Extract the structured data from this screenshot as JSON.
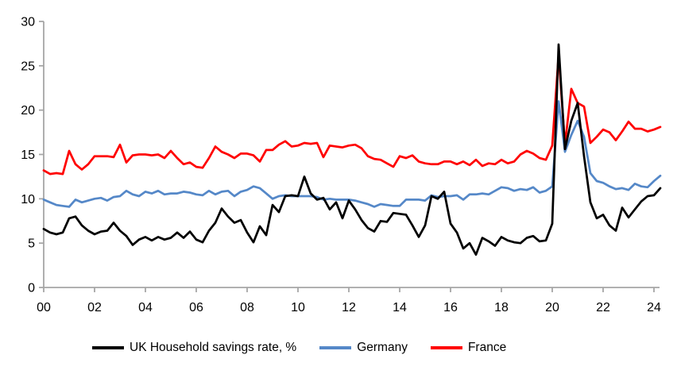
{
  "chart_data": {
    "type": "line",
    "title": "",
    "x_start": 2000.0,
    "x_step_years": 0.25,
    "x_axis": {
      "tick_labels": [
        "00",
        "02",
        "04",
        "06",
        "08",
        "10",
        "12",
        "14",
        "16",
        "18",
        "20",
        "22",
        "24"
      ],
      "tick_years": [
        2000,
        2002,
        2004,
        2006,
        2008,
        2010,
        2012,
        2014,
        2016,
        2018,
        2020,
        2022,
        2024
      ]
    },
    "y_axis": {
      "min": 0,
      "max": 30,
      "ticks": [
        0,
        5,
        10,
        15,
        20,
        25,
        30
      ]
    },
    "grid": false,
    "legend_position": "bottom",
    "axis_color": "#A6A6A6",
    "tick_label_color": "#000000",
    "series": [
      {
        "name": "UK Household savings rate, %",
        "color": "#000000",
        "values": [
          6.6,
          6.2,
          6.0,
          6.2,
          7.8,
          8.0,
          7.0,
          6.4,
          6.0,
          6.3,
          6.4,
          7.3,
          6.4,
          5.8,
          4.8,
          5.4,
          5.7,
          5.3,
          5.7,
          5.4,
          5.6,
          6.2,
          5.6,
          6.3,
          5.4,
          5.1,
          6.4,
          7.3,
          8.9,
          8.0,
          7.3,
          7.6,
          6.2,
          5.1,
          6.9,
          5.9,
          9.3,
          8.5,
          10.3,
          10.4,
          10.3,
          12.5,
          10.6,
          9.9,
          10.1,
          8.8,
          9.6,
          7.8,
          9.8,
          8.8,
          7.6,
          6.7,
          6.3,
          7.5,
          7.4,
          8.4,
          8.3,
          8.2,
          7.0,
          5.7,
          7.0,
          10.3,
          10.0,
          10.8,
          7.2,
          6.2,
          4.4,
          5.0,
          3.7,
          5.6,
          5.2,
          4.7,
          5.7,
          5.3,
          5.1,
          5.0,
          5.6,
          5.8,
          5.2,
          5.3,
          7.2,
          27.4,
          15.6,
          18.8,
          20.8,
          14.8,
          9.6,
          7.8,
          8.2,
          7.0,
          6.4,
          9.0,
          7.9,
          8.8,
          9.7,
          10.3,
          10.4,
          11.2
        ]
      },
      {
        "name": "Germany",
        "color": "#5588C8",
        "values": [
          9.9,
          9.6,
          9.3,
          9.2,
          9.1,
          9.9,
          9.6,
          9.8,
          10.0,
          10.1,
          9.8,
          10.2,
          10.3,
          10.9,
          10.5,
          10.3,
          10.8,
          10.6,
          10.9,
          10.5,
          10.6,
          10.6,
          10.8,
          10.7,
          10.5,
          10.4,
          10.9,
          10.5,
          10.8,
          10.9,
          10.3,
          10.8,
          11.0,
          11.4,
          11.2,
          10.6,
          10.0,
          10.3,
          10.4,
          10.3,
          10.3,
          10.3,
          10.3,
          10.2,
          9.9,
          10.0,
          9.9,
          9.9,
          9.9,
          9.8,
          9.6,
          9.4,
          9.1,
          9.4,
          9.3,
          9.2,
          9.2,
          9.9,
          9.9,
          9.9,
          9.8,
          10.4,
          10.2,
          10.3,
          10.3,
          10.4,
          9.9,
          10.5,
          10.5,
          10.6,
          10.5,
          10.9,
          11.3,
          11.2,
          10.9,
          11.1,
          11.0,
          11.3,
          10.7,
          10.9,
          11.4,
          21.0,
          15.3,
          17.2,
          18.8,
          17.0,
          12.9,
          12.0,
          11.8,
          11.4,
          11.1,
          11.2,
          11.0,
          11.7,
          11.4,
          11.3,
          12.0,
          12.6
        ]
      },
      {
        "name": "France",
        "color": "#FF0000",
        "values": [
          13.2,
          12.8,
          12.9,
          12.8,
          15.4,
          13.9,
          13.3,
          13.9,
          14.8,
          14.8,
          14.8,
          14.7,
          16.1,
          14.1,
          14.9,
          15.0,
          15.0,
          14.9,
          15.0,
          14.6,
          15.4,
          14.6,
          13.9,
          14.1,
          13.6,
          13.5,
          14.6,
          15.9,
          15.3,
          15.0,
          14.6,
          15.1,
          15.1,
          14.9,
          14.2,
          15.5,
          15.5,
          16.1,
          16.5,
          15.9,
          16.0,
          16.3,
          16.2,
          16.3,
          14.7,
          16.0,
          15.9,
          15.8,
          16.0,
          16.1,
          15.7,
          14.8,
          14.5,
          14.4,
          14.0,
          13.6,
          14.8,
          14.6,
          14.9,
          14.2,
          14.0,
          13.9,
          13.9,
          14.2,
          14.2,
          13.9,
          14.2,
          13.8,
          14.4,
          13.7,
          14.0,
          13.9,
          14.4,
          14.0,
          14.2,
          15.0,
          15.4,
          15.1,
          14.6,
          14.4,
          16.0,
          26.2,
          16.1,
          22.4,
          20.8,
          20.4,
          16.3,
          17.0,
          17.8,
          17.5,
          16.6,
          17.6,
          18.7,
          17.9,
          17.9,
          17.6,
          17.8,
          18.1
        ]
      }
    ]
  },
  "legend": {
    "uk_label": "UK Household savings rate, %",
    "germany_label": "Germany",
    "france_label": "France"
  }
}
